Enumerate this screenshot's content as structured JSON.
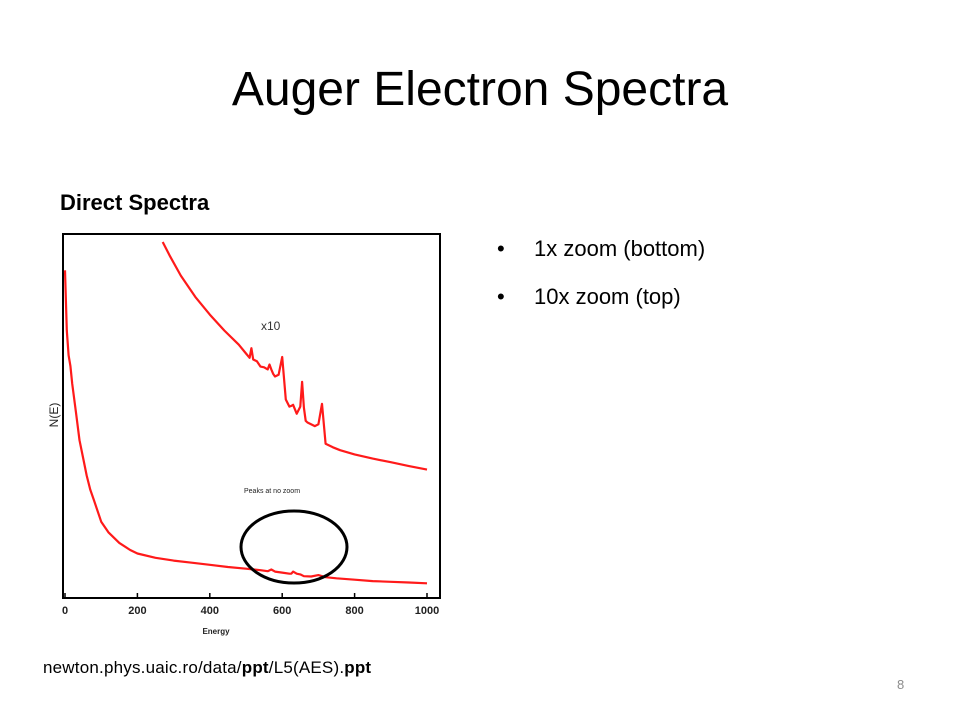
{
  "slide": {
    "title": "Auger Electron Spectra",
    "chart_heading": "Direct Spectra",
    "bullets": [
      "1x zoom (bottom)",
      "10x zoom (top)"
    ],
    "citation": {
      "part1": "newton.phys.uaic.ro/data/",
      "part2": "ppt",
      "part3": "/L5(AES).",
      "part4": "ppt"
    },
    "slide_number": "8"
  },
  "colors": {
    "series": "#ff1a1a",
    "annotation": "#000000",
    "frame": "#000000"
  },
  "chart_data": {
    "type": "line",
    "title": "",
    "xlabel": "Energy",
    "ylabel": "N(E)",
    "xlim": [
      0,
      1000
    ],
    "xticks": [
      "0",
      "200",
      "400",
      "600",
      "800",
      "1000"
    ],
    "y_axis_ticks_shown": false,
    "grid": false,
    "annotations": [
      "x10",
      "Peaks at no zoom"
    ],
    "series": [
      {
        "name": "x10",
        "x": [
          270,
          290,
          320,
          360,
          400,
          440,
          480,
          500,
          510,
          515,
          520,
          530,
          540,
          550,
          560,
          565,
          570,
          575,
          580,
          590,
          600,
          610,
          620,
          625,
          630,
          640,
          650,
          655,
          660,
          665,
          670,
          690,
          700,
          710,
          720,
          740,
          760,
          800,
          850,
          900,
          950,
          1000
        ],
        "y": [
          100,
          96,
          90.5,
          84.5,
          79.5,
          75,
          71,
          68.5,
          67.3,
          70,
          66.8,
          66.3,
          64.8,
          64.6,
          64,
          65.4,
          64,
          62.8,
          62,
          62.5,
          67.5,
          55.5,
          53.5,
          53.7,
          54,
          51.5,
          53.5,
          60.5,
          53.2,
          49.5,
          49,
          48,
          48.5,
          54.3,
          43,
          42,
          41.2,
          40,
          38.8,
          37.8,
          36.7,
          35.7
        ]
      },
      {
        "name": "1x",
        "x": [
          0,
          5,
          10,
          15,
          20,
          30,
          40,
          50,
          60,
          70,
          80,
          100,
          120,
          150,
          180,
          200,
          250,
          300,
          350,
          400,
          450,
          500,
          540,
          560,
          570,
          580,
          600,
          620,
          625,
          630,
          640,
          650,
          660,
          680,
          700,
          720,
          750,
          800,
          850,
          900,
          950,
          1000
        ],
        "y": [
          92,
          75,
          68,
          65,
          60,
          52,
          44,
          39,
          34,
          30,
          27,
          21,
          18,
          15,
          13,
          12,
          10.8,
          10,
          9.4,
          8.8,
          8.2,
          7.7,
          7.3,
          7,
          7.5,
          6.9,
          6.6,
          6.3,
          6.3,
          6.9,
          6.3,
          6.1,
          5.6,
          5.5,
          5.9,
          5.3,
          5,
          4.6,
          4.2,
          4,
          3.8,
          3.6
        ]
      }
    ]
  }
}
